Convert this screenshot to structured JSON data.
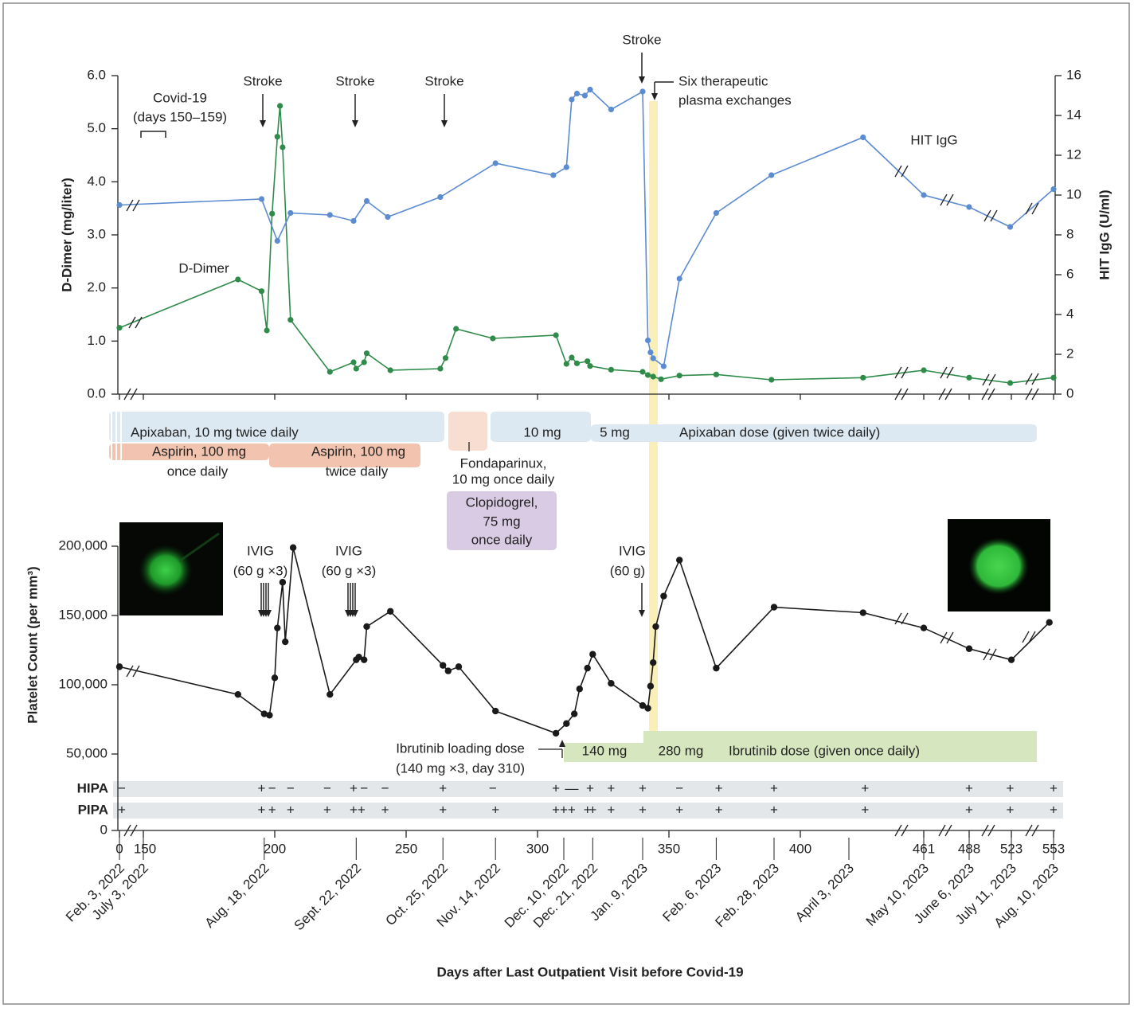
{
  "chart_data": [
    {
      "type": "line",
      "y_label": "D-Dimer (mg/liter)",
      "y2_label": "HIT IgG (U/ml)",
      "ylim": [
        0,
        6
      ],
      "yticks": [
        {
          "value": 0,
          "label": "0.0"
        },
        {
          "value": 1,
          "label": "1.0"
        },
        {
          "value": 2,
          "label": "2.0"
        },
        {
          "value": 3,
          "label": "3.0"
        },
        {
          "value": 4,
          "label": "4.0"
        },
        {
          "value": 5,
          "label": "5.0"
        },
        {
          "value": 6,
          "label": "6.0"
        }
      ],
      "y2lim": [
        0,
        16
      ],
      "y2ticks": [
        0,
        2,
        4,
        6,
        8,
        10,
        12,
        14,
        16
      ],
      "series": [
        {
          "name": "D-Dimer",
          "color": "#2e8b4a",
          "x": [
            0,
            186,
            195,
            197,
            199,
            201,
            202,
            203,
            206,
            221,
            230,
            231,
            234,
            235,
            244,
            263,
            265,
            269,
            283,
            307,
            311,
            313,
            315,
            319,
            320,
            328,
            340,
            342,
            344,
            347,
            354,
            368,
            389,
            431,
            461,
            488,
            522,
            553
          ],
          "values": [
            1.25,
            2.16,
            1.94,
            1.2,
            3.4,
            4.85,
            5.43,
            4.65,
            1.4,
            0.42,
            0.6,
            0.48,
            0.6,
            0.77,
            0.45,
            0.48,
            0.68,
            1.23,
            1.05,
            1.11,
            0.57,
            0.69,
            0.58,
            0.62,
            0.53,
            0.46,
            0.42,
            0.36,
            0.33,
            0.28,
            0.35,
            0.37,
            0.27,
            0.31,
            0.45,
            0.31,
            0.21,
            0.31
          ]
        },
        {
          "name": "HIT IgG",
          "color": "#5b8bd0",
          "axis": "y2",
          "x": [
            0,
            195,
            201,
            206,
            221,
            230,
            235,
            243,
            263,
            284,
            306,
            311,
            313,
            315,
            318,
            320,
            328,
            340,
            342,
            343,
            344,
            348,
            354,
            368,
            389,
            431,
            461,
            488,
            522,
            553
          ],
          "values": [
            9.5,
            9.8,
            7.7,
            9.1,
            9.0,
            8.7,
            9.7,
            8.9,
            9.9,
            11.6,
            11.0,
            11.4,
            14.8,
            15.1,
            15.0,
            15.3,
            14.3,
            15.2,
            2.7,
            2.1,
            1.8,
            1.4,
            5.8,
            9.1,
            11.0,
            12.9,
            10.0,
            9.4,
            8.4,
            10.3
          ]
        }
      ],
      "annotations": [
        {
          "lines": [
            "Stroke"
          ]
        },
        {
          "lines": [
            "Stroke"
          ]
        },
        {
          "lines": [
            "Stroke"
          ]
        },
        {
          "lines": [
            "Stroke"
          ]
        },
        {
          "lines": [
            "Covid-19",
            "(days 150–159)"
          ]
        },
        {
          "lines": [
            "Six therapeutic",
            "plasma exchanges"
          ],
          "color": "#fbefb8"
        }
      ],
      "treatments": [
        {
          "lines": [
            "Apixaban, 10 mg twice daily"
          ],
          "color": "#dde9f2"
        },
        {
          "lines": [
            "Aspirin, 100 mg",
            "once daily"
          ],
          "color": "#f2c3ae"
        },
        {
          "lines": [
            "Aspirin, 100 mg",
            "twice daily"
          ],
          "color": "#f2c3ae"
        },
        {
          "lines": [
            "Fondaparinux,",
            "10 mg once daily"
          ],
          "color": "#f8ddd1"
        },
        {
          "lines": [
            "Clopidogrel,",
            "75 mg",
            "once daily"
          ],
          "color": "#dacbe5"
        },
        {
          "lines": [
            "10 mg"
          ],
          "color": "#dde9f2"
        },
        {
          "lines": [
            "5 mg"
          ],
          "color": "#dde9f2"
        },
        {
          "lines": [
            "Apixaban dose (given twice daily)"
          ]
        }
      ]
    },
    {
      "type": "line",
      "y_label": "Platelet Count (per mm³)",
      "x_label": "Days after Last Outpatient Visit before Covid-19",
      "xlim": [
        0,
        553
      ],
      "xticks": [
        0,
        150,
        200,
        250,
        300,
        350,
        400,
        461,
        488,
        523,
        553
      ],
      "ylim": [
        0,
        200000
      ],
      "yticks": [
        0,
        {
          "value": 50000,
          "label": "50,000"
        },
        {
          "value": 100000,
          "label": "100,000"
        },
        {
          "value": 150000,
          "label": "150,000"
        },
        {
          "value": 200000,
          "label": "200,000"
        }
      ],
      "series": [
        {
          "color": "#1a1a1a",
          "x": [
            0,
            186,
            196,
            198,
            200,
            201,
            203,
            204,
            207,
            221,
            231,
            232,
            234,
            235,
            244,
            264,
            266,
            270,
            284,
            307,
            311,
            314,
            316,
            319,
            321,
            328,
            340,
            342,
            343,
            344,
            345,
            348,
            354,
            368,
            390,
            431,
            461,
            488,
            523,
            550
          ],
          "values": [
            113000,
            93000,
            79000,
            78000,
            105000,
            141000,
            174000,
            131000,
            199000,
            93000,
            118000,
            120000,
            118000,
            142000,
            153000,
            114000,
            110000,
            113000,
            81000,
            65000,
            72000,
            79000,
            97000,
            112000,
            122000,
            101000,
            85000,
            83000,
            99000,
            116000,
            142000,
            164000,
            190000,
            112000,
            156000,
            152000,
            141000,
            126000,
            118000,
            145000
          ]
        }
      ],
      "annotations": [
        {
          "lines": [
            "IVIG",
            "(60 g ×3)"
          ]
        },
        {
          "lines": [
            "IVIG",
            "(60 g ×3)"
          ]
        },
        {
          "lines": [
            "IVIG",
            "(60 g)"
          ]
        }
      ],
      "treatments": [
        {
          "lines": [
            "140 mg"
          ],
          "color": "#d6e6bf"
        },
        {
          "lines": [
            "280 mg"
          ],
          "color": "#d6e6bf"
        },
        {
          "lines": [
            "Ibrutinib dose (given once daily)"
          ]
        },
        {
          "lines": [
            "Ibrutinib loading dose",
            "(140 mg ×3, day 310)"
          ]
        }
      ],
      "assays": [
        {
          "label": "HIPA",
          "days": [
            0,
            195,
            199,
            206,
            220,
            230,
            234,
            242,
            264,
            283,
            307,
            313,
            320,
            328,
            340,
            354,
            369,
            390,
            432,
            488,
            522,
            553
          ],
          "results": [
            "−",
            "+",
            "−",
            "−",
            "−",
            "+",
            "−",
            "−",
            "+",
            "−",
            "+",
            "—",
            "+",
            "+",
            "+",
            "−",
            "+",
            "+",
            "+",
            "+",
            "+",
            "+"
          ]
        },
        {
          "label": "PIPA",
          "days": [
            0,
            195,
            199,
            206,
            220,
            230,
            233,
            242,
            264,
            284,
            307,
            310,
            313,
            319,
            321,
            328,
            340,
            354,
            369,
            390,
            432,
            488,
            522,
            553
          ],
          "results": [
            "+",
            "+",
            "+",
            "+",
            "+",
            "+",
            "+",
            "+",
            "+",
            "+",
            "+",
            "+",
            "+",
            "+",
            "+",
            "+",
            "+",
            "+",
            "+",
            "+",
            "+",
            "+",
            "+",
            "+"
          ]
        }
      ],
      "date_labels": {
        "days": [
          0,
          150,
          196,
          231,
          264,
          284,
          310,
          321,
          340,
          368,
          390,
          424,
          461,
          488,
          523,
          553
        ],
        "labels": [
          "Feb. 3, 2022",
          "July 3, 2022",
          "Aug. 18, 2022",
          "Sept. 22, 2022",
          "Oct. 25, 2022",
          "Nov. 14, 2022",
          "Dec. 10, 2022",
          "Dec. 21, 2022",
          "Jan. 9, 2023",
          "Feb. 6, 2023",
          "Feb. 28, 2023",
          "April 3, 2023",
          "May 10, 2023",
          "June 6, 2023",
          "July 11, 2023",
          "Aug. 10, 2023"
        ]
      }
    }
  ]
}
